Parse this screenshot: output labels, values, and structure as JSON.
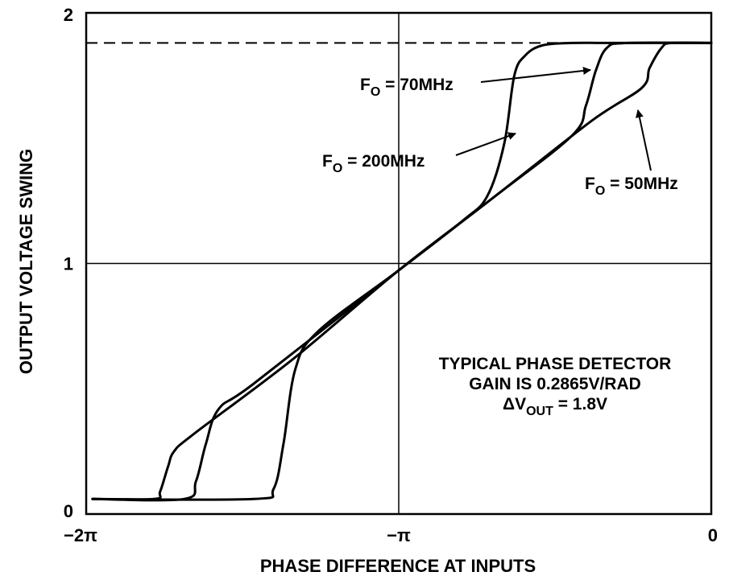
{
  "chart_data": {
    "type": "line",
    "title": "",
    "xlabel": "PHASE DIFFERENCE AT INPUTS",
    "ylabel": "OUTPUT VOLTAGE SWING",
    "x_ticks": [
      {
        "value": -6.2832,
        "label": "−2π"
      },
      {
        "value": -3.1416,
        "label": "−π"
      },
      {
        "value": 0,
        "label": "0"
      }
    ],
    "y_ticks": [
      {
        "value": 0,
        "label": "0"
      },
      {
        "value": 1,
        "label": "1"
      },
      {
        "value": 2,
        "label": "2"
      }
    ],
    "xlim": [
      -6.2832,
      0
    ],
    "ylim": [
      0,
      2
    ],
    "grid_lines": {
      "x": [
        -3.1416
      ],
      "y": [
        1
      ]
    },
    "saturation_level": 1.88,
    "colors": {
      "line": "#000000",
      "background": "#ffffff"
    },
    "series": [
      {
        "name": "FO = 50MHz",
        "x": [
          -6.22,
          -5.6,
          -5.54,
          -5.46,
          -5.4,
          -5.2,
          -4.2,
          -3.15,
          -2.2,
          -1.2,
          -0.7,
          -0.62,
          -0.5,
          -0.4,
          0
        ],
        "y": [
          0.06,
          0.06,
          0.09,
          0.19,
          0.25,
          0.32,
          0.62,
          0.97,
          1.26,
          1.57,
          1.7,
          1.78,
          1.86,
          1.88,
          1.88
        ]
      },
      {
        "name": "FO = 70MHz",
        "x": [
          -6.22,
          -5.3,
          -5.18,
          -5.08,
          -4.95,
          -4.6,
          -3.15,
          -2.2,
          -1.4,
          -1.26,
          -1.16,
          -1.05,
          -0.85,
          0
        ],
        "y": [
          0.06,
          0.06,
          0.13,
          0.28,
          0.42,
          0.52,
          0.97,
          1.26,
          1.51,
          1.63,
          1.77,
          1.86,
          1.88,
          1.88
        ]
      },
      {
        "name": "FO = 200MHz",
        "x": [
          -6.22,
          -4.6,
          -4.4,
          -4.3,
          -4.18,
          -3.95,
          -3.15,
          -2.5,
          -2.25,
          -2.08,
          -1.98,
          -1.87,
          -1.7,
          -1.4,
          -1.0,
          0
        ],
        "y": [
          0.06,
          0.06,
          0.1,
          0.28,
          0.58,
          0.73,
          0.97,
          1.17,
          1.27,
          1.48,
          1.75,
          1.83,
          1.87,
          1.88,
          1.88,
          1.88
        ]
      }
    ],
    "annotations": [
      {
        "id": "f70",
        "main": "F",
        "sub": "O",
        "rest": " = 70MHz"
      },
      {
        "id": "f200",
        "main": "F",
        "sub": "O",
        "rest": " = 200MHz"
      },
      {
        "id": "f50",
        "main": "F",
        "sub": "O",
        "rest": " = 50MHz"
      }
    ],
    "note_lines": [
      {
        "text": "TYPICAL PHASE DETECTOR"
      },
      {
        "text": "GAIN IS 0.2865V/RAD"
      },
      {
        "main": "ΔV",
        "sub": "OUT",
        "rest": " = 1.8V"
      }
    ]
  }
}
